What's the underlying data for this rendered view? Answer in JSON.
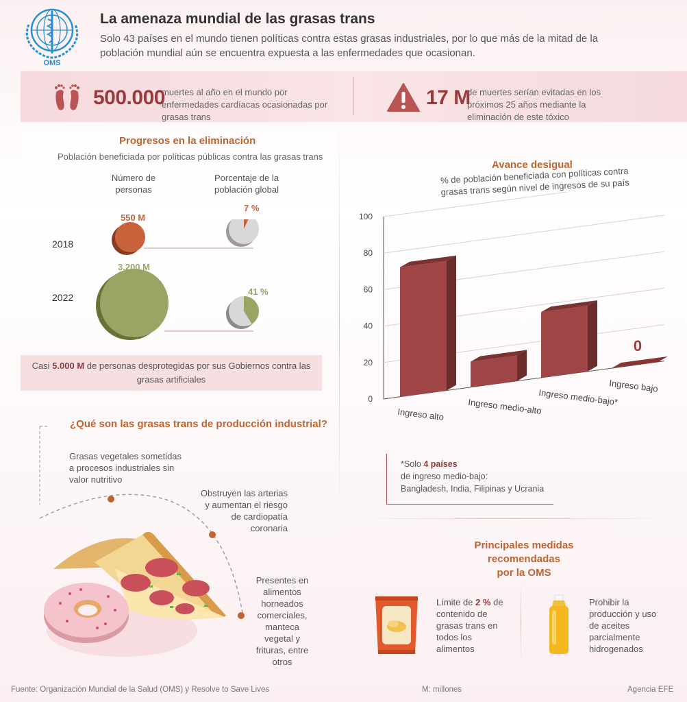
{
  "header": {
    "logo_text": "OMS",
    "title": "La amenaza mundial de las grasas trans",
    "subtitle": "Solo 43 países en el mundo tienen políticas contra estas grasas industriales, por lo que más de la mitad de la población mundial aún se encuentra expuesta a las enfermedades que ocasionan."
  },
  "stats": {
    "deaths_number": "500.000",
    "deaths_text": "muertes al año en el mundo por enfermedades cardíacas ocasionadas por grasas trans",
    "avoided_number": "17 M",
    "avoided_text": "de muertes serían evitadas en los próximos 25 años mediante la eliminación de este tóxico"
  },
  "progress": {
    "title": "Progresos en la eliminación",
    "subtitle": "Población beneficiada por políticas públicas contra las grasas trans",
    "col_people": "Número de personas",
    "col_percent": "Porcentaje de la población global",
    "rows": [
      {
        "year": "2018",
        "people_label": "550 M",
        "people_value": 550,
        "percent_label": "7 %",
        "percent_value": 7
      },
      {
        "year": "2022",
        "people_label": "3.200 M",
        "people_value": 3200,
        "percent_label": "41 %",
        "percent_value": 41
      }
    ],
    "unprotected_pre": "Casi ",
    "unprotected_bold": "5.000 M",
    "unprotected_post": " de personas desprotegidas por sus Gobiernos contra las grasas artificiales"
  },
  "chart_data": {
    "type": "bar",
    "title": "Avance desigual",
    "subtitle": "% de población beneficiada con políticas contra grasas trans según nivel de ingresos de su país",
    "categories": [
      "Ingreso alto",
      "Ingreso medio-alto",
      "Ingreso medio-bajo*",
      "Ingreso bajo"
    ],
    "values": [
      71,
      14,
      36,
      0
    ],
    "value_labels": [
      "",
      "",
      "",
      "0"
    ],
    "yticks": [
      0,
      20,
      40,
      60,
      80,
      100
    ],
    "ylim": [
      0,
      100
    ],
    "grid": true
  },
  "note": {
    "line1_pre": "*Solo ",
    "line1_bold": "4 países",
    "line2": "de ingreso medio-bajo:",
    "line3": "Bangladesh, India, Filipinas y Ucrania"
  },
  "what": {
    "title": "¿Qué son las grasas trans de producción industrial?",
    "item1": "Grasas vegetales sometidas a procesos industriales sin valor nutritivo",
    "item2": "Obstruyen las arterias y aumentan el riesgo de cardiopatía coronaria",
    "item3": "Presentes en alimentos horneados comerciales, manteca vegetal y frituras, entre otros"
  },
  "measures": {
    "title_line1": "Principales medidas recomendadas",
    "title_line2": "por la OMS",
    "m1_pre": "Límite de ",
    "m1_bold": "2 %",
    "m1_post": " de contenido de grasas trans en todos los alimentos",
    "m2": "Prohibir la producción y uso de aceites parcialmente hidrogenados"
  },
  "footer": {
    "source": "Fuente: Organización Mundial de la Salud (OMS) y Resolve to Save Lives",
    "units": "M: millones",
    "agency": "Agencia EFE"
  },
  "colors": {
    "maroon": "#9a3a3a",
    "bar_front": "#a04545",
    "bar_side": "#6d2c2c",
    "circle_2018": "#c8623a",
    "circle_2022": "#9aa465",
    "pie_2018": "#c8623a",
    "pie_2022": "#9aa465",
    "heading": "#c0642f"
  }
}
